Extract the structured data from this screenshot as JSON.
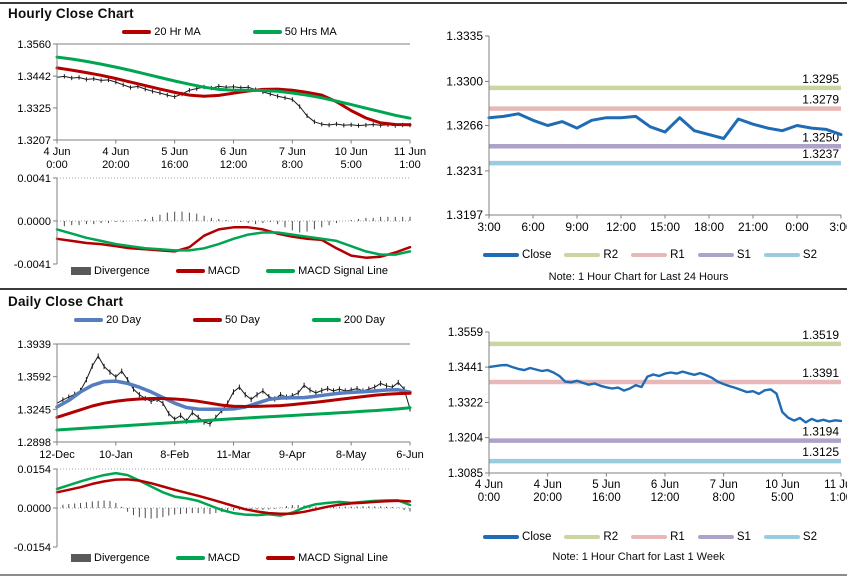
{
  "chart_data": [
    {
      "id": "hourly-price",
      "type": "line",
      "title": "Hourly Close Chart",
      "ylim": [
        1.3207,
        1.356
      ],
      "yticks": [
        "1.3560",
        "1.3442",
        "1.3325",
        "1.3207"
      ],
      "xticks": [
        [
          "4 Jun",
          "0:00"
        ],
        [
          "4 Jun",
          "20:00"
        ],
        [
          "5 Jun",
          "16:00"
        ],
        [
          "6 Jun",
          "12:00"
        ],
        [
          "7 Jun",
          "8:00"
        ],
        [
          "10 Jun",
          "5:00"
        ],
        [
          "11 Jun",
          "1:00"
        ]
      ],
      "series": [
        {
          "name": "Close",
          "style": "hlc",
          "color": "#1a1a1a",
          "in_legend": false,
          "values": [
            1.3438,
            1.3441,
            1.3435,
            1.3437,
            1.343,
            1.3432,
            1.3426,
            1.3428,
            1.342,
            1.341,
            1.34,
            1.3404,
            1.3394,
            1.3386,
            1.338,
            1.3372,
            1.3366,
            1.3376,
            1.339,
            1.3396,
            1.3402,
            1.3398,
            1.3405,
            1.3401,
            1.3403,
            1.3399,
            1.3401,
            1.3392,
            1.3384,
            1.3376,
            1.3368,
            1.3362,
            1.3356,
            1.333,
            1.3296,
            1.3274,
            1.3265,
            1.3262,
            1.3266,
            1.3261,
            1.3263,
            1.326,
            1.3262,
            1.3264,
            1.3261,
            1.3263,
            1.326,
            1.3262,
            1.3262
          ]
        },
        {
          "name": "20 Hr MA",
          "color": "#B20000",
          "width": 3,
          "values": [
            1.3472,
            1.3464,
            1.3455,
            1.3445,
            1.3433,
            1.342,
            1.3407,
            1.3394,
            1.3382,
            1.3372,
            1.3368,
            1.3371,
            1.3379,
            1.3387,
            1.3393,
            1.3394,
            1.339,
            1.3382,
            1.3372,
            1.3348,
            1.3315,
            1.3288,
            1.327,
            1.3264,
            1.3263
          ]
        },
        {
          "name": "50 Hrs MA",
          "color": "#00A551",
          "width": 3,
          "values": [
            1.3512,
            1.3505,
            1.3496,
            1.3486,
            1.3475,
            1.3463,
            1.345,
            1.3437,
            1.3424,
            1.3412,
            1.3401,
            1.3393,
            1.339,
            1.339,
            1.3389,
            1.3386,
            1.338,
            1.3372,
            1.3362,
            1.335,
            1.3337,
            1.3324,
            1.3311,
            1.3298,
            1.3287
          ]
        }
      ]
    },
    {
      "id": "hourly-macd",
      "type": "bar",
      "ylim": [
        -0.0041,
        0.0041
      ],
      "yticks": [
        "0.0041",
        "0.0000",
        "-0.0041"
      ],
      "series": [
        {
          "name": "Divergence",
          "style": "bars",
          "color": "#4d4d4d",
          "legend_color": "#595959",
          "values": [
            -0.0005,
            -0.0005,
            -0.0004,
            -0.0004,
            -0.0003,
            -0.0003,
            -0.0002,
            -0.0002,
            -0.0001,
            -0.0001,
            0.0,
            0.0001,
            0.0002,
            0.0004,
            0.0006,
            0.0008,
            0.0009,
            0.0009,
            0.0008,
            0.0007,
            0.0005,
            0.0003,
            0.0002,
            0.0001,
            0.0,
            -0.0001,
            -0.0002,
            -0.0003,
            -0.0002,
            -0.0001,
            -0.0003,
            -0.0006,
            -0.0009,
            -0.0011,
            -0.001,
            -0.0008,
            -0.0006,
            -0.0004,
            -0.0002,
            0.0,
            0.0001,
            0.0002,
            0.0003,
            0.0003,
            0.0004,
            0.0004,
            0.0004,
            0.0004,
            0.0004
          ]
        },
        {
          "name": "MACD",
          "color": "#B20000",
          "width": 2.5,
          "values": [
            -0.0017,
            -0.0019,
            -0.0021,
            -0.0022,
            -0.0024,
            -0.0026,
            -0.0027,
            -0.0028,
            -0.0029,
            -0.0025,
            -0.0014,
            -0.0008,
            -0.0006,
            -0.0006,
            -0.0008,
            -0.0012,
            -0.0015,
            -0.0017,
            -0.0018,
            -0.0026,
            -0.0033,
            -0.0035,
            -0.0034,
            -0.003,
            -0.0025
          ]
        },
        {
          "name": "MACD Signal Line",
          "color": "#00A551",
          "width": 2.5,
          "values": [
            -0.0008,
            -0.0012,
            -0.0016,
            -0.0019,
            -0.0022,
            -0.0024,
            -0.0026,
            -0.0027,
            -0.0028,
            -0.0028,
            -0.0026,
            -0.0022,
            -0.0017,
            -0.0013,
            -0.0011,
            -0.0011,
            -0.0013,
            -0.0015,
            -0.0017,
            -0.0019,
            -0.0024,
            -0.0029,
            -0.0032,
            -0.0032,
            -0.0029
          ]
        }
      ]
    },
    {
      "id": "hourly-pivot",
      "type": "line",
      "note": "Note: 1 Hour Chart for Last 24 Hours",
      "ylim": [
        1.3197,
        1.3335
      ],
      "yticks": [
        "1.3335",
        "1.3300",
        "1.3266",
        "1.3231",
        "1.3197"
      ],
      "xticks": [
        "3:00",
        "6:00",
        "9:00",
        "12:00",
        "15:00",
        "18:00",
        "21:00",
        "0:00",
        "3:00"
      ],
      "hlines": [
        {
          "name": "R2",
          "value": 1.3295,
          "label": "1.3295",
          "color": "#C9D69F"
        },
        {
          "name": "R1",
          "value": 1.3279,
          "label": "1.3279",
          "color": "#E6B9B8"
        },
        {
          "name": "S1",
          "value": 1.325,
          "label": "1.3250",
          "color": "#AFA2C8"
        },
        {
          "name": "S2",
          "value": 1.3237,
          "label": "1.3237",
          "color": "#99CCDD"
        }
      ],
      "series": [
        {
          "name": "Close",
          "color": "#1F6CB5",
          "width": 3,
          "values": [
            1.3272,
            1.3273,
            1.3275,
            1.327,
            1.3266,
            1.3269,
            1.3264,
            1.327,
            1.3272,
            1.3272,
            1.3273,
            1.3265,
            1.3261,
            1.3272,
            1.3262,
            1.3259,
            1.3256,
            1.3271,
            1.3267,
            1.3264,
            1.3262,
            1.3266,
            1.3264,
            1.3263,
            1.3259
          ]
        }
      ]
    },
    {
      "id": "daily-price",
      "type": "line",
      "title": "Daily Close Chart",
      "ylim": [
        1.2898,
        1.3939
      ],
      "yticks": [
        "1.3939",
        "1.3592",
        "1.3245",
        "1.2898"
      ],
      "xticks": [
        "12-Dec",
        "10-Jan",
        "8-Feb",
        "11-Mar",
        "9-Apr",
        "8-May",
        "6-Jun"
      ],
      "series": [
        {
          "name": "Close",
          "style": "hlc",
          "color": "#1a1a1a",
          "in_legend": false,
          "values": [
            1.331,
            1.3345,
            1.3375,
            1.3405,
            1.3445,
            1.356,
            1.3705,
            1.381,
            1.37,
            1.364,
            1.359,
            1.365,
            1.356,
            1.346,
            1.34,
            1.336,
            1.333,
            1.335,
            1.331,
            1.32,
            1.314,
            1.318,
            1.312,
            1.321,
            1.316,
            1.311,
            1.309,
            1.316,
            1.323,
            1.331,
            1.343,
            1.348,
            1.34,
            1.335,
            1.34,
            1.344,
            1.338,
            1.3355,
            1.34,
            1.3375,
            1.339,
            1.342,
            1.35,
            1.345,
            1.342,
            1.3445,
            1.3465,
            1.344,
            1.346,
            1.344,
            1.345,
            1.3465,
            1.344,
            1.346,
            1.348,
            1.352,
            1.3495,
            1.348,
            1.353,
            1.346,
            1.325
          ]
        },
        {
          "name": "20 Day",
          "color": "#567EBE",
          "width": 3.5,
          "values": [
            1.327,
            1.334,
            1.343,
            1.35,
            1.354,
            1.3545,
            1.352,
            1.348,
            1.343,
            1.337,
            1.331,
            1.3265,
            1.3248,
            1.3245,
            1.3246,
            1.325,
            1.327,
            1.331,
            1.335,
            1.3365,
            1.3368,
            1.337,
            1.3385,
            1.34,
            1.3415,
            1.3425,
            1.3432,
            1.344,
            1.345,
            1.3452,
            1.3428
          ]
        },
        {
          "name": "50 Day",
          "color": "#B20000",
          "width": 3,
          "values": [
            1.316,
            1.32,
            1.324,
            1.328,
            1.331,
            1.333,
            1.3345,
            1.3355,
            1.336,
            1.336,
            1.3355,
            1.3345,
            1.333,
            1.331,
            1.329,
            1.3278,
            1.3275,
            1.3276,
            1.328,
            1.3285,
            1.3295,
            1.3308,
            1.332,
            1.3335,
            1.335,
            1.3365,
            1.338,
            1.3395,
            1.3405,
            1.3412,
            1.3415
          ]
        },
        {
          "name": "200 Day",
          "color": "#00A551",
          "width": 3,
          "values": [
            1.3025,
            1.3033,
            1.3041,
            1.3049,
            1.3057,
            1.3065,
            1.3073,
            1.3081,
            1.3089,
            1.3097,
            1.3105,
            1.3113,
            1.3121,
            1.3129,
            1.3137,
            1.3145,
            1.3152,
            1.3159,
            1.3166,
            1.3173,
            1.318,
            1.3187,
            1.3194,
            1.3201,
            1.3208,
            1.3216,
            1.3224,
            1.3232,
            1.324,
            1.325,
            1.3262
          ]
        }
      ]
    },
    {
      "id": "daily-macd",
      "type": "bar",
      "ylim": [
        -0.0154,
        0.0154
      ],
      "yticks": [
        "0.0154",
        "0.0000",
        "-0.0154"
      ],
      "series": [
        {
          "name": "Divergence",
          "style": "bars",
          "color": "#4d4d4d",
          "legend_color": "#595959",
          "values": [
            0.001,
            0.0013,
            0.0016,
            0.0018,
            0.002,
            0.0023,
            0.0026,
            0.0028,
            0.003,
            0.0028,
            0.002,
            0.0005,
            -0.0015,
            -0.0028,
            -0.0036,
            -0.004,
            -0.0042,
            -0.004,
            -0.0036,
            -0.003,
            -0.0026,
            -0.0024,
            -0.0022,
            -0.002,
            -0.002,
            -0.0022,
            -0.0024,
            -0.002,
            -0.0016,
            -0.0012,
            -0.001,
            -0.0008,
            -0.0006,
            -0.0005,
            -0.0006,
            -0.0008,
            -0.0006,
            -0.0004,
            0.0002,
            0.0008,
            0.0012,
            0.0012,
            0.001,
            0.0008,
            0.0006,
            0.0005,
            0.0004,
            0.0004,
            0.0005,
            0.0006,
            0.0006,
            0.0006,
            0.0007,
            0.0007,
            0.0006,
            0.0006,
            0.0005,
            0.0004,
            0.0002,
            -0.0008,
            -0.0014
          ]
        },
        {
          "name": "MACD",
          "color": "#00A551",
          "width": 2.5,
          "values": [
            0.0075,
            0.009,
            0.0105,
            0.0118,
            0.013,
            0.0138,
            0.013,
            0.0108,
            0.0085,
            0.0062,
            0.0045,
            0.0038,
            0.0028,
            0.001,
            -0.0008,
            -0.002,
            -0.0026,
            -0.0028,
            -0.0025,
            -0.003,
            -0.0018,
            0.0002,
            0.0015,
            0.002,
            0.0024,
            0.002,
            0.0024,
            0.0028,
            0.003,
            0.003,
            0.0012
          ]
        },
        {
          "name": "MACD Signal Line",
          "color": "#B20000",
          "width": 2.5,
          "values": [
            0.0062,
            0.0072,
            0.0082,
            0.0095,
            0.0105,
            0.0112,
            0.0113,
            0.0108,
            0.0098,
            0.0085,
            0.0072,
            0.006,
            0.0048,
            0.0035,
            0.0022,
            0.0008,
            -0.0005,
            -0.0014,
            -0.002,
            -0.0023,
            -0.0022,
            -0.0015,
            -0.0005,
            0.0005,
            0.0013,
            0.0018,
            0.0021,
            0.0024,
            0.0027,
            0.0029,
            0.0026
          ]
        }
      ]
    },
    {
      "id": "weekly-pivot",
      "type": "line",
      "note": "Note: 1 Hour Chart for Last 1 Week",
      "ylim": [
        1.3085,
        1.3559
      ],
      "yticks": [
        "1.3559",
        "1.3441",
        "1.3322",
        "1.3204",
        "1.3085"
      ],
      "xticks": [
        [
          "4 Jun",
          "0:00"
        ],
        [
          "4 Jun",
          "20:00"
        ],
        [
          "5 Jun",
          "16:00"
        ],
        [
          "6 Jun",
          "12:00"
        ],
        [
          "7 Jun",
          "8:00"
        ],
        [
          "10 Jun",
          "5:00"
        ],
        [
          "11 Jun",
          "1:00"
        ]
      ],
      "hlines": [
        {
          "name": "R2",
          "value": 1.3519,
          "label": "1.3519",
          "color": "#C9D69F"
        },
        {
          "name": "R1",
          "value": 1.3391,
          "label": "1.3391",
          "color": "#E6B9B8"
        },
        {
          "name": "S1",
          "value": 1.3194,
          "label": "1.3194",
          "color": "#AFA2C8"
        },
        {
          "name": "S2",
          "value": 1.3125,
          "label": "1.3125",
          "color": "#99CCDD"
        }
      ],
      "series": [
        {
          "name": "Close",
          "color": "#1F6CB5",
          "width": 2.4,
          "values": [
            1.3441,
            1.3444,
            1.3447,
            1.3448,
            1.3441,
            1.3435,
            1.3431,
            1.3438,
            1.3433,
            1.3428,
            1.3431,
            1.3423,
            1.3411,
            1.3392,
            1.339,
            1.3395,
            1.3388,
            1.3382,
            1.3386,
            1.3378,
            1.3373,
            1.3369,
            1.3372,
            1.3362,
            1.3369,
            1.338,
            1.3374,
            1.3409,
            1.3416,
            1.3411,
            1.3419,
            1.3423,
            1.3419,
            1.3426,
            1.342,
            1.3415,
            1.3421,
            1.3414,
            1.3405,
            1.3392,
            1.3384,
            1.3377,
            1.3371,
            1.3364,
            1.3357,
            1.336,
            1.3351,
            1.3363,
            1.3366,
            1.3352,
            1.329,
            1.3271,
            1.3261,
            1.327,
            1.3255,
            1.3267,
            1.3259,
            1.3264,
            1.3258,
            1.3262,
            1.326
          ]
        }
      ]
    }
  ]
}
